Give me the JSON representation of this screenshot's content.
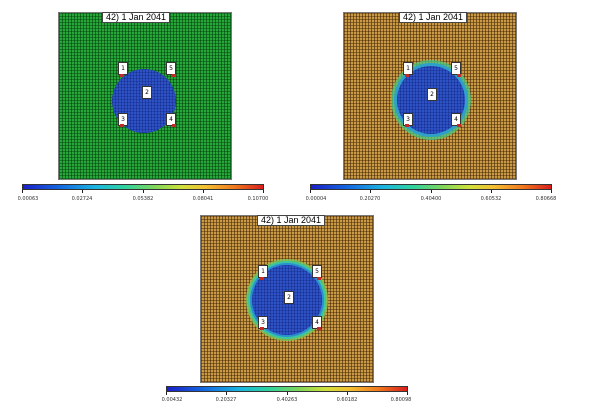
{
  "panels": [
    {
      "date_label": "42) 1 Jan 2041",
      "bottom_label": "",
      "colorbar_ticks": [
        "0.00063",
        "0.02724",
        "0.05382",
        "0.08041",
        "0.10700"
      ],
      "wells": [
        "1",
        "5",
        "2",
        "3",
        "4"
      ]
    },
    {
      "date_label": "42) 1 Jan 2041",
      "bottom_label": "",
      "colorbar_ticks": [
        "0.00004",
        "0.20270",
        "0.40400",
        "0.60532",
        "0.80668"
      ],
      "wells": [
        "1",
        "5",
        "2",
        "3",
        "4"
      ]
    },
    {
      "date_label": "42) 1 Jan 2041",
      "bottom_label": "",
      "colorbar_ticks": [
        "0.00432",
        "0.20327",
        "0.40263",
        "0.60182",
        "0.80098"
      ],
      "wells": [
        "1",
        "5",
        "2",
        "3",
        "4"
      ]
    }
  ]
}
